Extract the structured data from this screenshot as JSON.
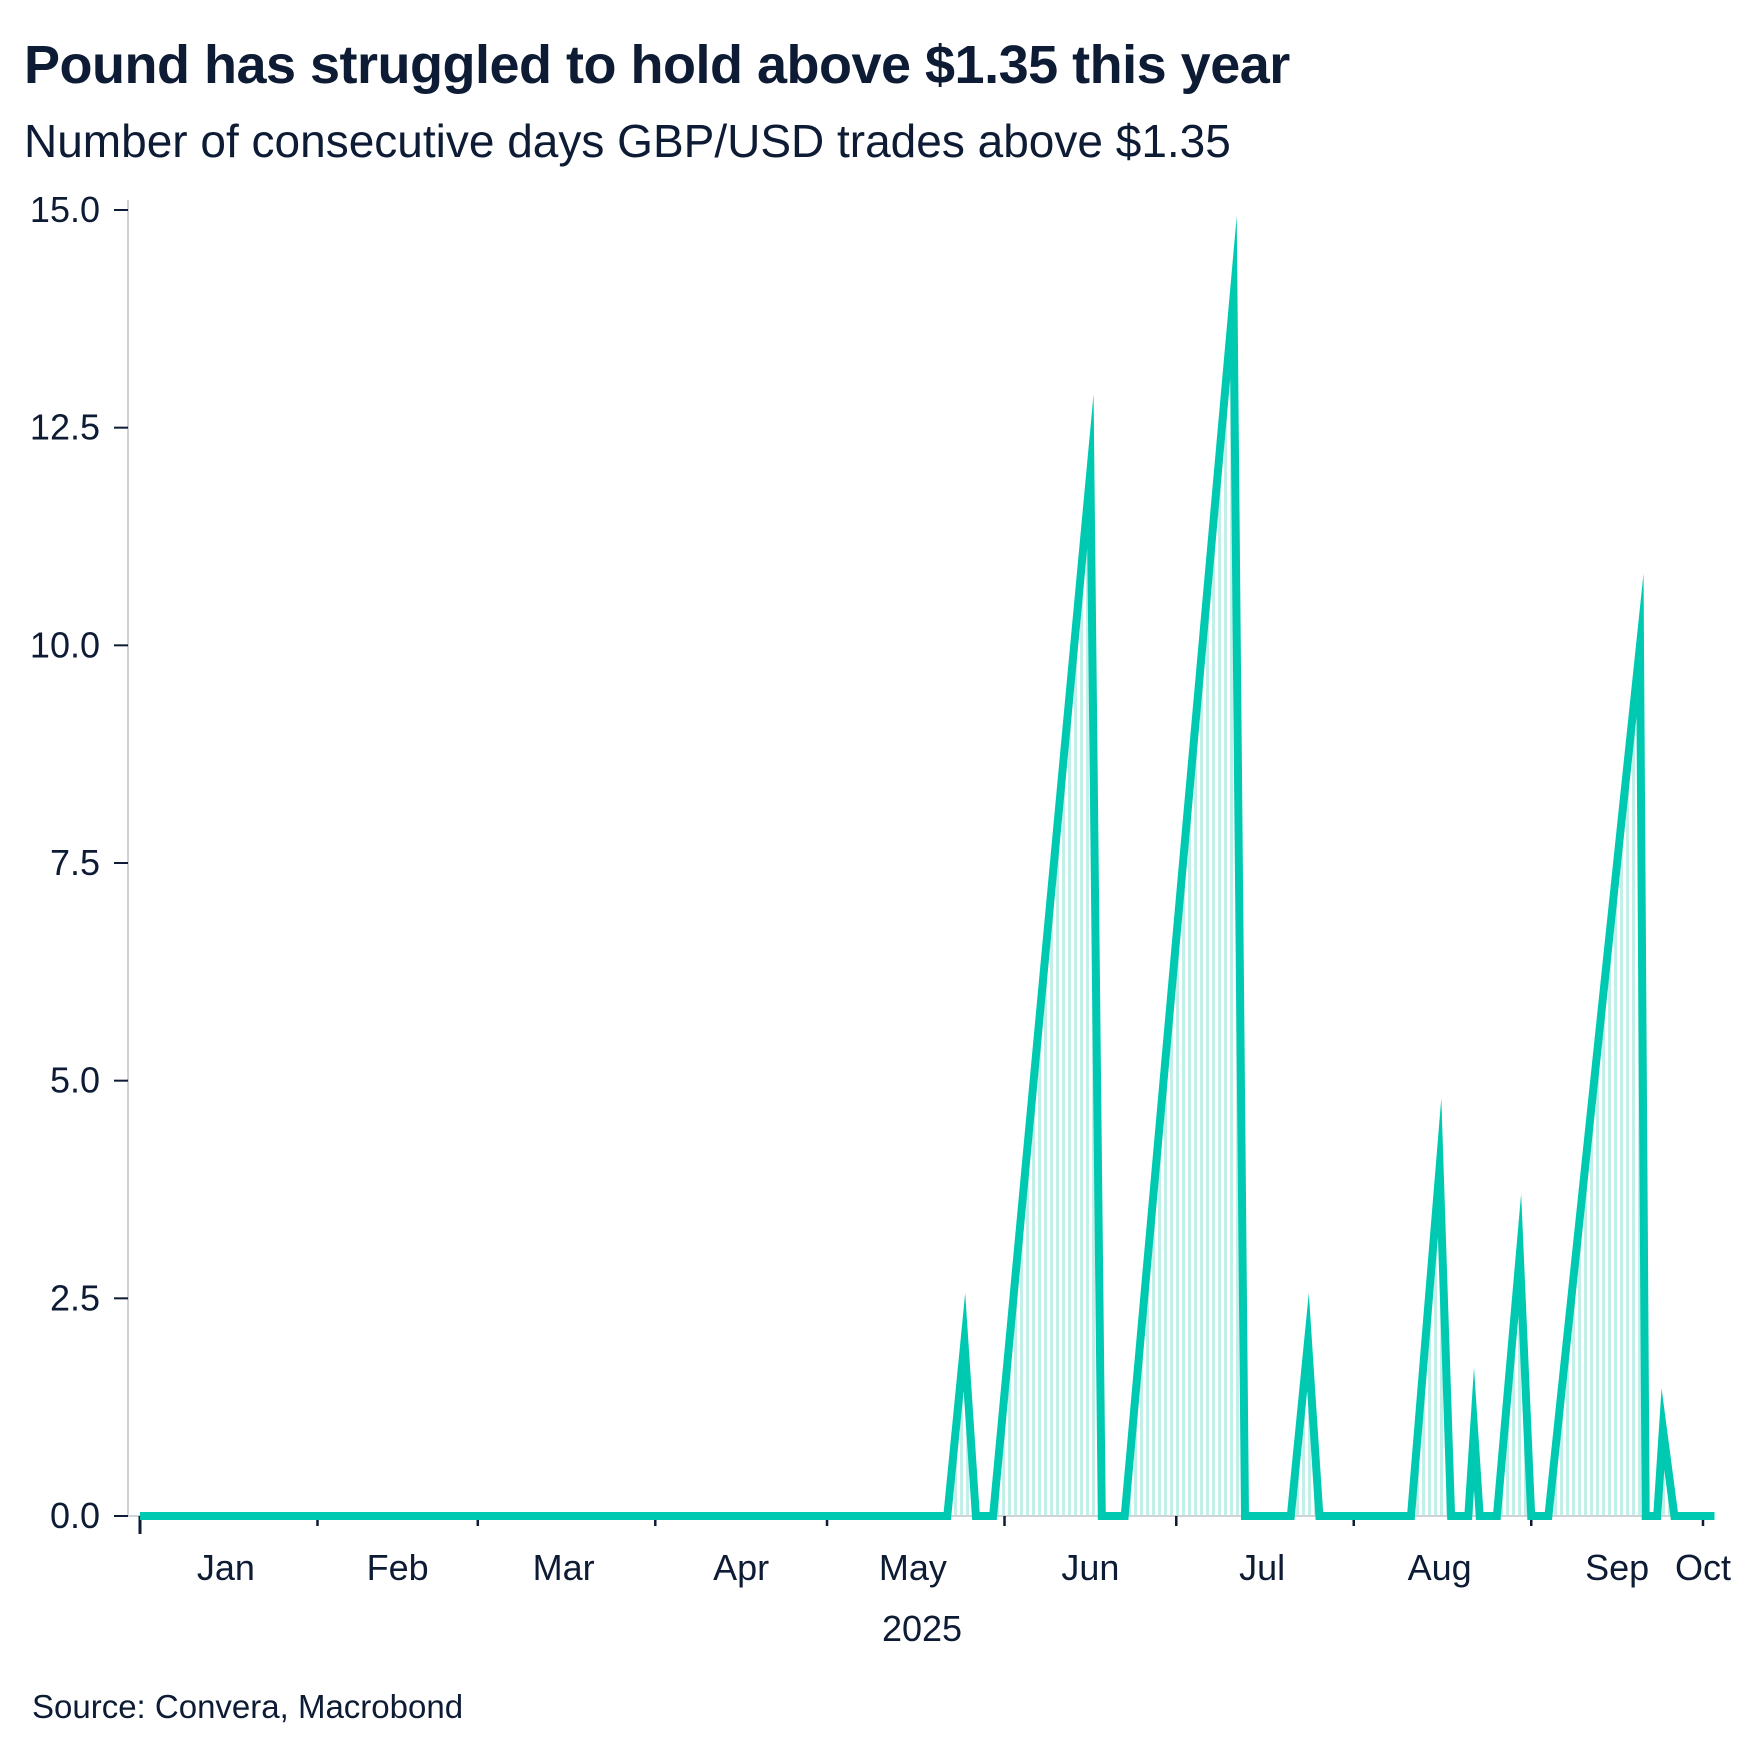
{
  "chart_data": {
    "type": "line",
    "title": "Pound has struggled to hold above $1.35 this year",
    "subtitle": "Number of consecutive days GBP/USD trades above $1.35",
    "source": "Source: Convera, Macrobond",
    "xlabel": "2025",
    "ylabel": "",
    "x_range": [
      "2025-01-01",
      "2025-10-01"
    ],
    "x_tick_dates": [
      "2025-01-01",
      "2025-02-01",
      "2025-03-01",
      "2025-04-01",
      "2025-05-01",
      "2025-06-01",
      "2025-07-01",
      "2025-08-01",
      "2025-09-01",
      "2025-10-01"
    ],
    "x_labels": [
      {
        "label": "Jan",
        "date": "2025-01-16"
      },
      {
        "label": "Feb",
        "date": "2025-02-15"
      },
      {
        "label": "Mar",
        "date": "2025-03-16"
      },
      {
        "label": "Apr",
        "date": "2025-04-16"
      },
      {
        "label": "May",
        "date": "2025-05-16"
      },
      {
        "label": "Jun",
        "date": "2025-06-16"
      },
      {
        "label": "Jul",
        "date": "2025-07-16"
      },
      {
        "label": "Aug",
        "date": "2025-08-16"
      },
      {
        "label": "Sep",
        "date": "2025-09-16"
      },
      {
        "label": "Oct",
        "date": "2025-10-01"
      }
    ],
    "ylim": [
      0,
      15
    ],
    "y_ticks": [
      0,
      2.5,
      5,
      7.5,
      10,
      12.5,
      15
    ],
    "y_tick_labels": [
      "0.0",
      "2.5",
      "5.0",
      "7.5",
      "10.0",
      "12.5",
      "15.0"
    ],
    "grid": false,
    "series": [
      {
        "line_color": "#00c9b1",
        "fill_color": "#c2f0e8",
        "points": [
          {
            "x": "2025-01-01",
            "y": 0
          },
          {
            "x": "2025-05-22",
            "y": 0
          },
          {
            "x": "2025-05-25",
            "y": 2
          },
          {
            "x": "2025-05-27",
            "y": 0
          },
          {
            "x": "2025-05-30",
            "y": 0
          },
          {
            "x": "2025-06-16",
            "y": 12
          },
          {
            "x": "2025-06-18",
            "y": 0
          },
          {
            "x": "2025-06-22",
            "y": 0
          },
          {
            "x": "2025-07-11",
            "y": 14
          },
          {
            "x": "2025-07-13",
            "y": 0
          },
          {
            "x": "2025-07-21",
            "y": 0
          },
          {
            "x": "2025-07-24",
            "y": 2
          },
          {
            "x": "2025-07-26",
            "y": 0
          },
          {
            "x": "2025-08-11",
            "y": 0
          },
          {
            "x": "2025-08-16",
            "y": 4
          },
          {
            "x": "2025-08-18",
            "y": 0
          },
          {
            "x": "2025-08-21",
            "y": 0
          },
          {
            "x": "2025-08-22",
            "y": 1
          },
          {
            "x": "2025-08-23",
            "y": 0
          },
          {
            "x": "2025-08-26",
            "y": 0
          },
          {
            "x": "2025-08-30",
            "y": 3
          },
          {
            "x": "2025-09-01",
            "y": 0
          },
          {
            "x": "2025-09-04",
            "y": 0
          },
          {
            "x": "2025-09-20",
            "y": 10
          },
          {
            "x": "2025-09-21",
            "y": 0
          },
          {
            "x": "2025-09-23",
            "y": 0
          },
          {
            "x": "2025-09-24",
            "y": 1
          },
          {
            "x": "2025-09-26",
            "y": 0
          },
          {
            "x": "2025-10-03",
            "y": 0
          }
        ]
      }
    ]
  }
}
